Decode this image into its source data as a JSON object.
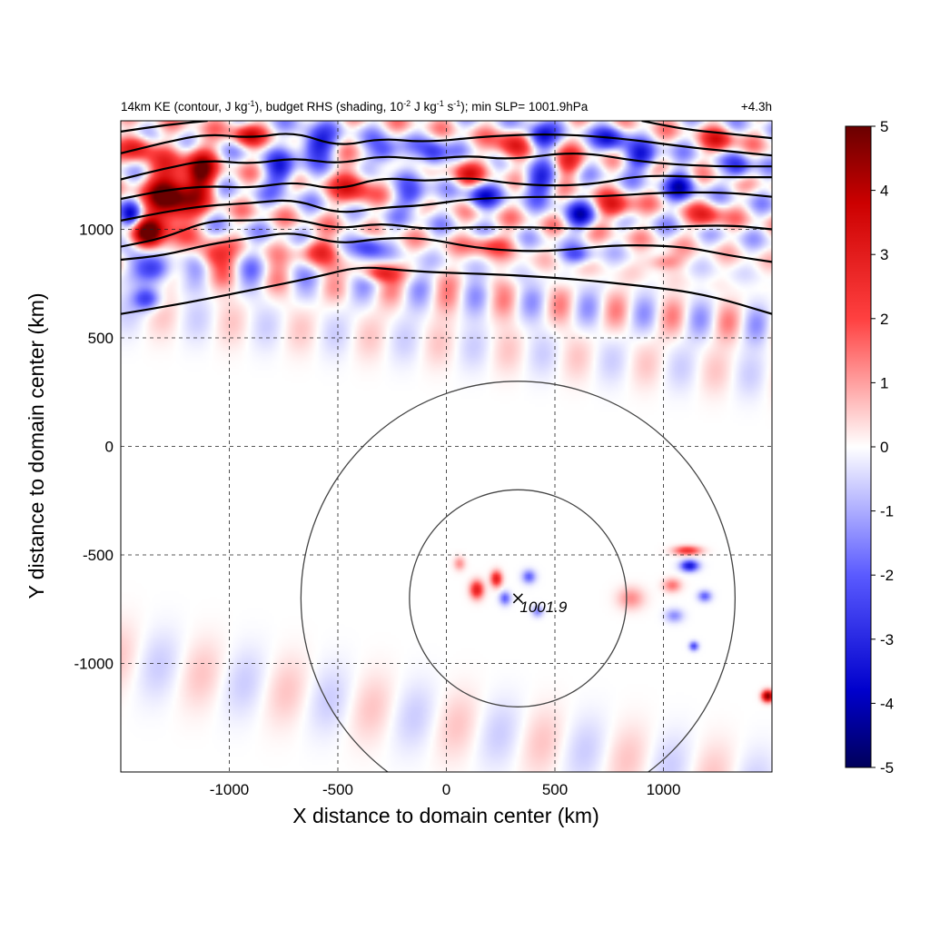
{
  "chart_data": {
    "type": "heatmap",
    "title": "14km KE (contour, J kg-1), budget RHS (shading, 10-2 J kg-1 s-1); min SLP= 1001.9hPa",
    "title_parts": {
      "ke": "14km KE (contour, J kg",
      "ke_sup": "-1",
      "rhs": "), budget RHS (shading, 10",
      "rhs_sup1": "-2",
      "rhs_mid": " J kg",
      "rhs_sup2": "-1",
      "rhs_s": " s",
      "rhs_sup3": "-1",
      "tail": "); min SLP= 1001.9hPa"
    },
    "time_label": "+4.3h",
    "xlabel": "X distance to domain center (km)",
    "ylabel": "Y distance to domain center (km)",
    "xlim": [
      -1500,
      1500
    ],
    "ylim": [
      -1500,
      1500
    ],
    "xticks": [
      -1000,
      -500,
      0,
      500,
      1000
    ],
    "yticks": [
      1000,
      500,
      0,
      -500,
      -1000
    ],
    "grid": "dashed",
    "colorbar": {
      "min": -5,
      "max": 5,
      "ticks": [
        5,
        4,
        3,
        2,
        1,
        0,
        -1,
        -2,
        -3,
        -4,
        -5
      ],
      "colormap": "blue-white-red",
      "colors": {
        "min": "#00005a",
        "mid_low": "#0000ff",
        "zero": "#ffffff",
        "mid_high": "#ff0000",
        "max": "#6a0000"
      }
    },
    "storm_center": {
      "x": 330,
      "y": -700,
      "label": "1001.9"
    },
    "range_circles_radius_km": [
      500,
      1000
    ],
    "ke_contours": [
      {
        "level": 1,
        "points": [
          [
            -1500,
            610
          ],
          [
            -1200,
            660
          ],
          [
            -900,
            720
          ],
          [
            -600,
            780
          ],
          [
            -400,
            830
          ],
          [
            -200,
            810
          ],
          [
            0,
            800
          ],
          [
            300,
            790
          ],
          [
            600,
            770
          ],
          [
            900,
            740
          ],
          [
            1200,
            700
          ],
          [
            1500,
            610
          ]
        ]
      },
      {
        "level": 2,
        "points": [
          [
            -1500,
            860
          ],
          [
            -1300,
            880
          ],
          [
            -1100,
            930
          ],
          [
            -900,
            960
          ],
          [
            -700,
            990
          ],
          [
            -500,
            930
          ],
          [
            -300,
            960
          ],
          [
            -100,
            960
          ],
          [
            100,
            920
          ],
          [
            300,
            900
          ],
          [
            500,
            900
          ],
          [
            800,
            930
          ],
          [
            1100,
            920
          ],
          [
            1300,
            880
          ],
          [
            1500,
            850
          ]
        ]
      },
      {
        "level": 3,
        "points": [
          [
            -1500,
            920
          ],
          [
            -1300,
            960
          ],
          [
            -1100,
            1040
          ],
          [
            -900,
            1040
          ],
          [
            -700,
            1050
          ],
          [
            -500,
            1000
          ],
          [
            -300,
            1030
          ],
          [
            -100,
            1000
          ],
          [
            100,
            1010
          ],
          [
            400,
            1010
          ],
          [
            700,
            1000
          ],
          [
            1000,
            1010
          ],
          [
            1300,
            1020
          ],
          [
            1500,
            1000
          ]
        ]
      },
      {
        "level": 4,
        "points": [
          [
            -1500,
            1040
          ],
          [
            -1300,
            1080
          ],
          [
            -1100,
            1110
          ],
          [
            -900,
            1120
          ],
          [
            -700,
            1140
          ],
          [
            -500,
            1070
          ],
          [
            -300,
            1100
          ],
          [
            -100,
            1110
          ],
          [
            100,
            1140
          ],
          [
            400,
            1150
          ],
          [
            700,
            1150
          ],
          [
            1000,
            1170
          ],
          [
            1300,
            1170
          ],
          [
            1500,
            1150
          ]
        ]
      },
      {
        "level": 5,
        "points": [
          [
            -1500,
            1140
          ],
          [
            -1300,
            1180
          ],
          [
            -1100,
            1200
          ],
          [
            -900,
            1190
          ],
          [
            -700,
            1220
          ],
          [
            -500,
            1180
          ],
          [
            -300,
            1240
          ],
          [
            -100,
            1220
          ],
          [
            100,
            1240
          ],
          [
            300,
            1210
          ],
          [
            500,
            1200
          ],
          [
            700,
            1210
          ],
          [
            900,
            1250
          ],
          [
            1200,
            1240
          ],
          [
            1500,
            1240
          ]
        ]
      },
      {
        "level": 6,
        "points": [
          [
            -1500,
            1230
          ],
          [
            -1300,
            1280
          ],
          [
            -1100,
            1320
          ],
          [
            -900,
            1300
          ],
          [
            -700,
            1330
          ],
          [
            -500,
            1300
          ],
          [
            -300,
            1340
          ],
          [
            -100,
            1320
          ],
          [
            100,
            1340
          ],
          [
            300,
            1320
          ],
          [
            600,
            1360
          ],
          [
            900,
            1310
          ],
          [
            1200,
            1290
          ],
          [
            1500,
            1290
          ]
        ]
      },
      {
        "level": 7,
        "points": [
          [
            -1500,
            1350
          ],
          [
            -1300,
            1400
          ],
          [
            -1100,
            1440
          ],
          [
            -900,
            1420
          ],
          [
            -700,
            1450
          ],
          [
            -500,
            1380
          ],
          [
            -300,
            1420
          ],
          [
            -100,
            1400
          ],
          [
            200,
            1430
          ],
          [
            500,
            1440
          ],
          [
            800,
            1420
          ],
          [
            1100,
            1380
          ],
          [
            1300,
            1360
          ],
          [
            1500,
            1340
          ]
        ]
      },
      {
        "level": 8,
        "points": [
          [
            -1500,
            1450
          ],
          [
            -1300,
            1480
          ],
          [
            -1100,
            1500
          ]
        ]
      },
      {
        "level": 9,
        "points": [
          [
            900,
            1500
          ],
          [
            1100,
            1460
          ],
          [
            1300,
            1440
          ],
          [
            1500,
            1420
          ]
        ]
      }
    ],
    "rhs_features": [
      {
        "x": -1270,
        "y": 1150,
        "sx": 110,
        "sy": 150,
        "amp": 5.5
      },
      {
        "x": -1380,
        "y": 980,
        "sx": 70,
        "sy": 70,
        "amp": 4.5
      },
      {
        "x": -1130,
        "y": 1260,
        "sx": 70,
        "sy": 120,
        "amp": 4
      },
      {
        "x": -1420,
        "y": 1380,
        "sx": 70,
        "sy": 60,
        "amp": 3
      },
      {
        "x": -1330,
        "y": 820,
        "sx": 90,
        "sy": 60,
        "amp": -3
      },
      {
        "x": -1450,
        "y": 1060,
        "sx": 50,
        "sy": 60,
        "amp": -3
      },
      {
        "x": -1080,
        "y": 880,
        "sx": 80,
        "sy": 60,
        "amp": 2.5
      },
      {
        "x": -920,
        "y": 1430,
        "sx": 70,
        "sy": 50,
        "amp": 3
      },
      {
        "x": -760,
        "y": 1260,
        "sx": 70,
        "sy": 80,
        "amp": -3
      },
      {
        "x": -600,
        "y": 1390,
        "sx": 90,
        "sy": 70,
        "amp": -3.5
      },
      {
        "x": -430,
        "y": 1200,
        "sx": 80,
        "sy": 90,
        "amp": 3
      },
      {
        "x": -280,
        "y": 1350,
        "sx": 70,
        "sy": 60,
        "amp": -3
      },
      {
        "x": -150,
        "y": 1150,
        "sx": 80,
        "sy": 60,
        "amp": -2.5
      },
      {
        "x": -580,
        "y": 900,
        "sx": 90,
        "sy": 60,
        "amp": 2.5
      },
      {
        "x": -360,
        "y": 920,
        "sx": 70,
        "sy": 60,
        "amp": -2.5
      },
      {
        "x": -60,
        "y": 1340,
        "sx": 60,
        "sy": 70,
        "amp": -3
      },
      {
        "x": 90,
        "y": 1250,
        "sx": 70,
        "sy": 60,
        "amp": 2.5
      },
      {
        "x": 160,
        "y": 1150,
        "sx": 70,
        "sy": 60,
        "amp": -3
      },
      {
        "x": 300,
        "y": 1380,
        "sx": 80,
        "sy": 70,
        "amp": 3
      },
      {
        "x": 430,
        "y": 1420,
        "sx": 70,
        "sy": 60,
        "amp": -3.5
      },
      {
        "x": 200,
        "y": 930,
        "sx": 110,
        "sy": 50,
        "amp": 2
      },
      {
        "x": 430,
        "y": 1220,
        "sx": 80,
        "sy": 70,
        "amp": -3
      },
      {
        "x": 560,
        "y": 1300,
        "sx": 70,
        "sy": 60,
        "amp": 2.5
      },
      {
        "x": 620,
        "y": 1060,
        "sx": 70,
        "sy": 60,
        "amp": -3
      },
      {
        "x": 780,
        "y": 1100,
        "sx": 80,
        "sy": 60,
        "amp": 3
      },
      {
        "x": 900,
        "y": 1330,
        "sx": 80,
        "sy": 60,
        "amp": -3
      },
      {
        "x": 760,
        "y": 1420,
        "sx": 70,
        "sy": 60,
        "amp": -3
      },
      {
        "x": 1080,
        "y": 1200,
        "sx": 70,
        "sy": 70,
        "amp": -3
      },
      {
        "x": 1260,
        "y": 1410,
        "sx": 70,
        "sy": 60,
        "amp": 2.5
      },
      {
        "x": 1200,
        "y": 1060,
        "sx": 70,
        "sy": 60,
        "amp": 2.5
      },
      {
        "x": 1350,
        "y": 1280,
        "sx": 60,
        "sy": 60,
        "amp": -2.5
      },
      {
        "x": -300,
        "y": 800,
        "sx": 80,
        "sy": 40,
        "amp": 2.5
      },
      {
        "x": 600,
        "y": 880,
        "sx": 70,
        "sy": 40,
        "amp": -1.8
      },
      {
        "x": 1000,
        "y": 850,
        "sx": 80,
        "sy": 40,
        "amp": 1.8
      },
      {
        "x": -1380,
        "y": 680,
        "sx": 60,
        "sy": 50,
        "amp": -2.5
      },
      {
        "x": 140,
        "y": -660,
        "sx": 30,
        "sy": 40,
        "amp": 3
      },
      {
        "x": 230,
        "y": -610,
        "sx": 25,
        "sy": 35,
        "amp": 3
      },
      {
        "x": 270,
        "y": -700,
        "sx": 25,
        "sy": 30,
        "amp": -2
      },
      {
        "x": 380,
        "y": -600,
        "sx": 30,
        "sy": 30,
        "amp": -2
      },
      {
        "x": 60,
        "y": -540,
        "sx": 25,
        "sy": 30,
        "amp": 1.2
      },
      {
        "x": 420,
        "y": -760,
        "sx": 25,
        "sy": 25,
        "amp": -1.5
      },
      {
        "x": 1120,
        "y": -550,
        "sx": 40,
        "sy": 25,
        "amp": -3.5
      },
      {
        "x": 1110,
        "y": -480,
        "sx": 60,
        "sy": 20,
        "amp": 2.5
      },
      {
        "x": 1040,
        "y": -640,
        "sx": 40,
        "sy": 30,
        "amp": 1.5
      },
      {
        "x": 1190,
        "y": -690,
        "sx": 30,
        "sy": 25,
        "amp": -2
      },
      {
        "x": 1140,
        "y": -920,
        "sx": 20,
        "sy": 20,
        "amp": -2.5
      },
      {
        "x": 1480,
        "y": -1150,
        "sx": 25,
        "sy": 25,
        "amp": 5
      },
      {
        "x": 850,
        "y": -700,
        "sx": 60,
        "sy": 50,
        "amp": 1.2
      },
      {
        "x": 1050,
        "y": -780,
        "sx": 40,
        "sy": 30,
        "amp": -1.4
      }
    ],
    "rhs_bands": [
      {
        "dir": [
          0.1,
          1
        ],
        "offset_km": 700,
        "width_km": 90,
        "wavelength_km": 260,
        "amp": 1.4
      },
      {
        "dir": [
          0.1,
          1
        ],
        "offset_km": 470,
        "width_km": 110,
        "wavelength_km": 320,
        "amp": 0.6
      },
      {
        "dir": [
          0.2,
          1
        ],
        "offset_km": -1250,
        "width_km": 160,
        "wavelength_km": 400,
        "amp": 0.6
      }
    ]
  }
}
